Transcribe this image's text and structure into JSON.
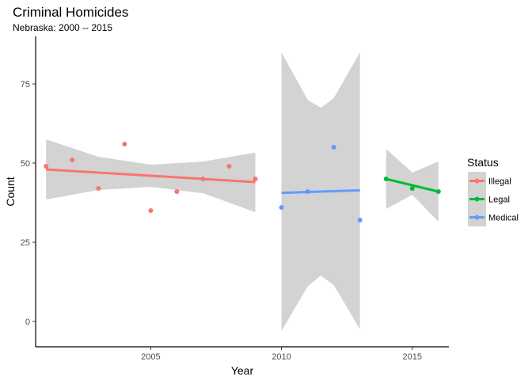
{
  "chart_data": {
    "type": "scatter",
    "title": "Criminal Homicides",
    "subtitle": "Nebraska: 2000 -- 2015",
    "xlabel": "Year",
    "ylabel": "Count",
    "xlim": [
      2000.6,
      2016.4
    ],
    "ylim": [
      -8,
      90
    ],
    "x_ticks": [
      2005,
      2010,
      2015
    ],
    "y_ticks": [
      0,
      25,
      50,
      75
    ],
    "grid": false,
    "legend": {
      "title": "Status",
      "position": "right"
    },
    "series": [
      {
        "name": "Illegal",
        "color": "#F8766D",
        "points": [
          {
            "x": 2001,
            "y": 49
          },
          {
            "x": 2002,
            "y": 51
          },
          {
            "x": 2003,
            "y": 42
          },
          {
            "x": 2004,
            "y": 56
          },
          {
            "x": 2005,
            "y": 35
          },
          {
            "x": 2006,
            "y": 41
          },
          {
            "x": 2007,
            "y": 45
          },
          {
            "x": 2008,
            "y": 49
          },
          {
            "x": 2009,
            "y": 45
          }
        ],
        "fit": {
          "x": [
            2001,
            2009
          ],
          "y": [
            48,
            44
          ]
        },
        "band": {
          "x": [
            2001,
            2003,
            2005,
            2007,
            2009
          ],
          "lower": [
            38.5,
            41.5,
            42.5,
            40.5,
            34.5
          ],
          "upper": [
            57.5,
            52,
            49.5,
            50.5,
            53.3
          ]
        }
      },
      {
        "name": "Legal",
        "color": "#00BA38",
        "points": [
          {
            "x": 2014,
            "y": 45
          },
          {
            "x": 2015,
            "y": 42
          },
          {
            "x": 2016,
            "y": 41
          }
        ],
        "fit": {
          "x": [
            2014,
            2016
          ],
          "y": [
            45,
            41
          ]
        },
        "band": {
          "x": [
            2014,
            2015,
            2016
          ],
          "lower": [
            35.5,
            40,
            31.5
          ],
          "upper": [
            54.5,
            47,
            50.5
          ]
        }
      },
      {
        "name": "Medical",
        "color": "#619CFF",
        "points": [
          {
            "x": 2010,
            "y": 36
          },
          {
            "x": 2011,
            "y": 41
          },
          {
            "x": 2012,
            "y": 55
          },
          {
            "x": 2013,
            "y": 32
          }
        ],
        "fit": {
          "x": [
            2010,
            2013
          ],
          "y": [
            40.6,
            41.4
          ]
        },
        "band": {
          "x": [
            2010,
            2011,
            2011.5,
            2012,
            2013
          ],
          "lower": [
            -3,
            11,
            14.5,
            11.5,
            -2.5
          ],
          "upper": [
            85,
            70,
            67.5,
            70.5,
            85
          ]
        }
      }
    ]
  }
}
